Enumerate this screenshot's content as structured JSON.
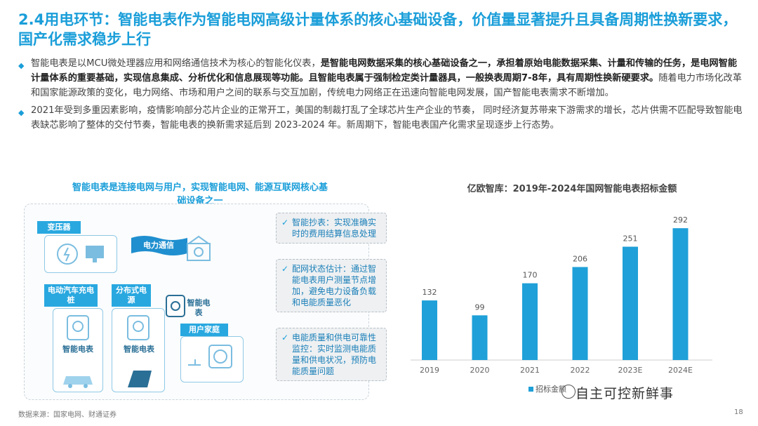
{
  "title": "2.4用电环节：智能电表作为智能电网高级计量体系的核心基础设备，价值量显著提升且具备周期性换新要求，国产化需求稳步上行",
  "bullets": [
    {
      "p1": "智能电表是以MCU微处理器应用和网络通信技术为核心的智能化仪表，",
      "b1": "是智能电网数据采集的核心基础设备之一，承担着原始电能数据采集、计量和传输的任务，是电网智能计量体系的重要基础，实现信息集成、分析优化和信息展现等功能。且智能电表属于强制检定类计量器具，一般换表周期7-8年，具有周期性换新硬要求。",
      "p2": "随着电力市场化改革和国家能源政策的变化，电力网络、市场和用户之间的联系与交互加剧，传统电力网络正在迅速向智能电网发展，国产智能电表需求不断增加。"
    },
    {
      "p1": "2021年受到多重因素影响，疫情影响部分芯片企业的正常开工，美国的制裁打乱了全球芯片生产企业的节奏， 同时经济复苏带来下游需求的增长，芯片供需不匹配导致智能电表缺芯影响了整体的交付节奏，智能电表的换新需求延后到 2023-2024 年。新周期下，智能电表国产化需求呈现逐步上行态势。"
    }
  ],
  "diagram": {
    "title": "智能电表是连接电网与用户，实现智能电网、能源互联网核心基础设备之一",
    "labels": {
      "transformer": "变压器",
      "comm": "电力通信",
      "ev": "电动汽车充电桩",
      "dist": "分布式电源",
      "meter_mid": "智能电表",
      "home": "用户家庭",
      "meter_ev": "智能电表",
      "meter_dist": "智能电表"
    },
    "callouts": [
      "智能抄表：实现准确实时的费用结算信息处理",
      "配网状态估计：通过智能电表用户测量节点增加，避免电力设备负载和电能质量恶化",
      "电能质量和供电可靠性监控：实时监测电能质量和供电状况，预防电能质量问题"
    ]
  },
  "chart_data": {
    "type": "bar",
    "title": "亿欧智库：2019年-2024年国网智能电表招标金额",
    "categories": [
      "2019",
      "2020",
      "2021",
      "2022",
      "2023E",
      "2024E"
    ],
    "values": [
      132,
      99,
      170,
      206,
      251,
      292
    ],
    "legend": "招标金额",
    "ylim": [
      0,
      300
    ],
    "color": "#1fa0d8",
    "grid": false,
    "legend_position": "bottom"
  },
  "source": "数据来源：国家电网、财通证券",
  "page_number": "18",
  "watermark": "自主可控新鲜事"
}
